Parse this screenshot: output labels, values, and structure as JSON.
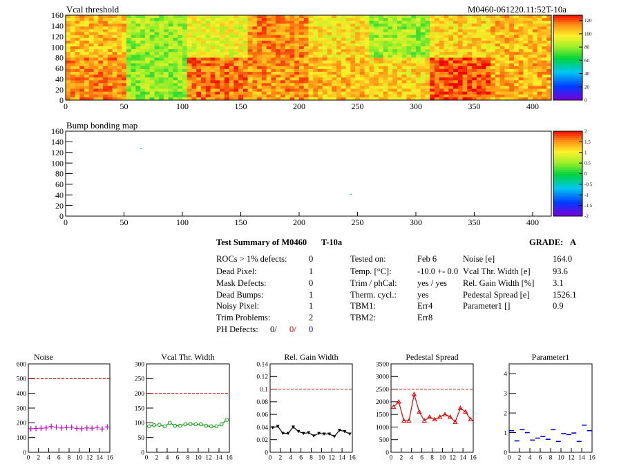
{
  "header": {
    "map1_title": "Vcal threshold",
    "module_id": "M0460-061220.11:52T-10a",
    "map2_title": "Bump bonding map"
  },
  "summary": {
    "title": "Test Summary of M0460",
    "test_name": "T-10a",
    "grade_label": "GRADE:",
    "grade": "A",
    "rocs_label": "ROCs > 1% defects:",
    "rocs": "0",
    "dead_pixel_label": "Dead Pixel:",
    "dead_pixel": "1",
    "mask_label": "Mask Defects:",
    "mask": "0",
    "dead_bumps_label": "Dead Bumps:",
    "dead_bumps": "1",
    "noisy_label": "Noisy Pixel:",
    "noisy": "1",
    "trim_label": "Trim Problems:",
    "trim": "2",
    "ph_label": "PH Defects:",
    "ph_a": "0/",
    "ph_b": "0/",
    "ph_c": "0",
    "tested_label": "Tested on:",
    "tested": "Feb 6",
    "temp_label": "Temp. [°C]:",
    "temp": "-10.0 +- 0.0",
    "trimcal_label": "Trim / phCal:",
    "trimcal": "yes / yes",
    "therm_label": "Therm. cycl.:",
    "therm": "yes",
    "tbm1_label": "TBM1:",
    "tbm1": "Err4",
    "tbm2_label": "TBM2:",
    "tbm2": "Err8",
    "noise_label": "Noise [e]",
    "noise": "164.0",
    "vcalw_label": "Vcal Thr. Width [e]",
    "vcalw": "93.6",
    "gainw_label": "Rel. Gain Width [%]",
    "gainw": "3.1",
    "ped_label": "Pedestal Spread [e]",
    "ped": "1526.1",
    "par1_label": "Parameter1 []",
    "par1": "0.9"
  },
  "colors": {
    "magenta": "#cc00cc",
    "green": "#00a000",
    "black": "#000000",
    "red": "#dd0000",
    "blue": "#0000cc",
    "limit": "#cc0000",
    "ph_b": "#ff0000",
    "ph_c": "#0000ff"
  },
  "chart_data": [
    {
      "type": "heatmap",
      "title": "Vcal threshold",
      "xlim": [
        0,
        416
      ],
      "ylim": [
        0,
        160
      ],
      "xticks": [
        0,
        50,
        100,
        150,
        200,
        250,
        300,
        350,
        400
      ],
      "yticks": [
        0,
        20,
        40,
        60,
        80,
        100,
        120,
        140,
        160
      ],
      "zlim": [
        0,
        128
      ],
      "zticks": [
        0,
        20,
        40,
        60,
        80,
        100,
        120
      ],
      "roc_mean_top": [
        104,
        80,
        92,
        112,
        98,
        80,
        100,
        104
      ],
      "roc_mean_bottom": [
        112,
        78,
        114,
        110,
        104,
        100,
        118,
        106
      ]
    },
    {
      "type": "heatmap",
      "title": "Bump bonding map",
      "xlim": [
        0,
        416
      ],
      "ylim": [
        0,
        160
      ],
      "xticks": [
        0,
        50,
        100,
        150,
        200,
        250,
        300,
        350,
        400
      ],
      "yticks": [
        0,
        20,
        40,
        60,
        80,
        100,
        120,
        140,
        160
      ],
      "zlim": [
        -2,
        2
      ],
      "zticks": [
        -2,
        -1.5,
        -1,
        -0.5,
        0,
        0.5,
        1,
        1.5,
        2
      ],
      "points": [
        {
          "x": 64,
          "y": 128
        },
        {
          "x": 244,
          "y": 42
        }
      ]
    },
    {
      "type": "scatter",
      "title": "Noise",
      "color_key": "magenta",
      "marker": "plus",
      "xlim": [
        0,
        16
      ],
      "ylim": [
        0,
        600
      ],
      "xticks": [
        0,
        2,
        4,
        6,
        8,
        10,
        12,
        14,
        16
      ],
      "yticks": [
        0,
        100,
        200,
        300,
        400,
        500,
        600
      ],
      "limit": 500,
      "x": [
        0,
        1,
        2,
        3,
        4,
        5,
        6,
        7,
        8,
        9,
        10,
        11,
        12,
        13,
        14,
        15
      ],
      "values": [
        160,
        162,
        163,
        165,
        175,
        170,
        165,
        168,
        170,
        162,
        160,
        165,
        163,
        168,
        158,
        172
      ]
    },
    {
      "type": "line",
      "title": "Vcal Thr. Width",
      "color_key": "green",
      "marker": "circle",
      "xlim": [
        0,
        16
      ],
      "ylim": [
        0,
        300
      ],
      "xticks": [
        0,
        2,
        4,
        6,
        8,
        10,
        12,
        14,
        16
      ],
      "yticks": [
        0,
        50,
        100,
        150,
        200,
        250,
        300
      ],
      "limit": 200,
      "x": [
        0,
        1,
        2,
        3,
        4,
        5,
        6,
        7,
        8,
        9,
        10,
        11,
        12,
        13,
        14,
        15
      ],
      "values": [
        88,
        92,
        93,
        88,
        100,
        90,
        90,
        95,
        96,
        95,
        95,
        90,
        88,
        88,
        95,
        110
      ]
    },
    {
      "type": "line",
      "title": "Rel. Gain Width",
      "color_key": "black",
      "marker": "triangle-down",
      "xlim": [
        0,
        16
      ],
      "ylim": [
        0,
        0.14
      ],
      "xticks": [
        0,
        2,
        4,
        6,
        8,
        10,
        12,
        14,
        16
      ],
      "yticks": [
        0,
        0.02,
        0.04,
        0.06,
        0.08,
        0.1,
        0.12,
        0.14
      ],
      "limit": 0.1,
      "x": [
        0,
        1,
        2,
        3,
        4,
        5,
        6,
        7,
        8,
        9,
        10,
        11,
        12,
        13,
        14,
        15
      ],
      "values": [
        0.039,
        0.041,
        0.03,
        0.03,
        0.04,
        0.033,
        0.03,
        0.031,
        0.026,
        0.03,
        0.029,
        0.029,
        0.025,
        0.035,
        0.033,
        0.029
      ]
    },
    {
      "type": "line",
      "title": "Pedestal Spread",
      "color_key": "red",
      "marker": "triangle-up",
      "xlim": [
        0,
        16
      ],
      "ylim": [
        0,
        3500
      ],
      "xticks": [
        0,
        2,
        4,
        6,
        8,
        10,
        12,
        14,
        16
      ],
      "yticks": [
        0,
        500,
        1000,
        1500,
        2000,
        2500,
        3000,
        3500
      ],
      "limit": 2500,
      "x": [
        0,
        1,
        2,
        3,
        4,
        5,
        6,
        7,
        8,
        9,
        10,
        11,
        12,
        13,
        14,
        15
      ],
      "values": [
        1800,
        2000,
        1250,
        1250,
        2300,
        1600,
        1250,
        1400,
        1300,
        1400,
        1500,
        1400,
        1200,
        1750,
        1600,
        1300
      ]
    },
    {
      "type": "scatter",
      "title": "Parameter1",
      "color_key": "blue",
      "marker": "dash",
      "xlim": [
        0,
        16
      ],
      "ylim": [
        0,
        4.5
      ],
      "xticks": [
        0,
        2,
        4,
        6,
        8,
        10,
        12,
        14,
        16
      ],
      "yticks": [
        0,
        1,
        2,
        3,
        4
      ],
      "limit": null,
      "x": [
        0,
        1,
        2,
        3,
        4,
        5,
        6,
        7,
        8,
        9,
        10,
        11,
        12,
        13,
        14,
        15
      ],
      "values": [
        1.1,
        0.58,
        1.15,
        1.0,
        0.62,
        0.72,
        0.8,
        0.66,
        1.15,
        0.55,
        0.95,
        0.9,
        0.98,
        0.55,
        1.38,
        1.1
      ]
    }
  ]
}
